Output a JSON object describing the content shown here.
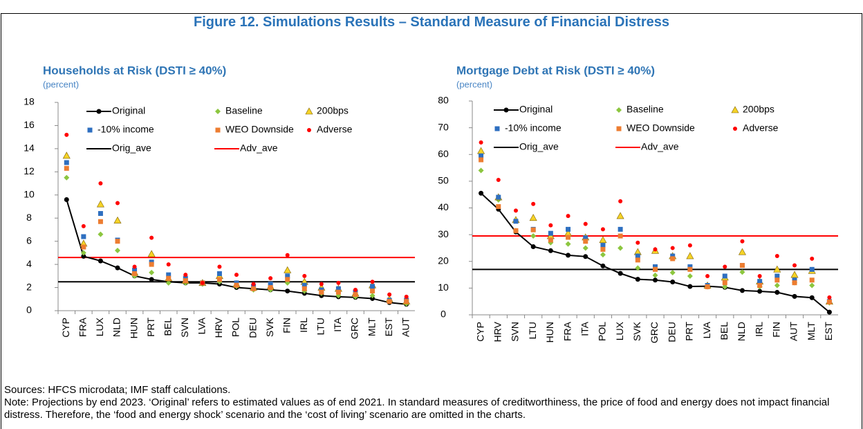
{
  "title": "Figure 12. Simulations Results – Standard Measure of Financial Distress",
  "chart_data": [
    {
      "type": "scatter-line",
      "title": "Households at Risk (DSTI ≥ 40%)",
      "unit": "(percent)",
      "categories": [
        "CYP",
        "FRA",
        "LUX",
        "NLD",
        "HUN",
        "PRT",
        "BEL",
        "SVN",
        "LVA",
        "HRV",
        "POL",
        "DEU",
        "SVK",
        "FIN",
        "IRL",
        "LTU",
        "ITA",
        "GRC",
        "MLT",
        "EST",
        "AUT"
      ],
      "ylim": [
        0,
        18
      ],
      "yticks": [
        0,
        2,
        4,
        6,
        8,
        10,
        12,
        14,
        16,
        18
      ],
      "series": [
        {
          "name": "Original",
          "color": "#000000",
          "marker": "line",
          "values": [
            9.6,
            4.7,
            4.3,
            3.7,
            3.0,
            2.7,
            2.5,
            2.4,
            2.4,
            2.3,
            2.0,
            1.9,
            1.8,
            1.7,
            1.5,
            1.3,
            1.2,
            1.15,
            1.05,
            0.7,
            0.55
          ]
        },
        {
          "name": "Baseline",
          "color": "#8cc63f",
          "marker": "diamond",
          "values": [
            11.5,
            5.0,
            6.6,
            5.2,
            3.0,
            3.3,
            2.4,
            2.4,
            2.3,
            2.5,
            2.1,
            1.8,
            1.8,
            2.4,
            1.7,
            1.5,
            1.3,
            1.2,
            1.3,
            0.8,
            0.6
          ]
        },
        {
          "name": "200bps",
          "color": "#f5d327",
          "marker": "triangle",
          "values": [
            13.4,
            5.8,
            9.2,
            7.8,
            3.3,
            4.9,
            2.8,
            2.6,
            2.4,
            3.0,
            2.3,
            2.0,
            2.1,
            3.5,
            2.5,
            2.0,
            1.9,
            1.5,
            2.2,
            1.0,
            0.8
          ]
        },
        {
          "name": "-10% income",
          "color": "#2e6fc0",
          "marker": "square",
          "values": [
            12.8,
            6.4,
            8.4,
            6.1,
            3.5,
            4.2,
            3.1,
            2.8,
            2.4,
            3.2,
            2.4,
            2.1,
            2.3,
            3.0,
            2.2,
            1.8,
            1.9,
            1.6,
            2.1,
            0.9,
            0.9
          ]
        },
        {
          "name": "WEO Downside",
          "color": "#ed7d31",
          "marker": "square",
          "values": [
            12.3,
            5.5,
            7.7,
            6.0,
            3.2,
            4.0,
            2.8,
            2.6,
            2.4,
            2.7,
            2.2,
            1.9,
            2.0,
            2.7,
            1.9,
            1.6,
            1.6,
            1.4,
            1.7,
            0.8,
            0.8
          ]
        },
        {
          "name": "Adverse",
          "color": "#ff0000",
          "marker": "circle",
          "values": [
            15.2,
            7.3,
            11.0,
            9.3,
            3.8,
            6.3,
            4.0,
            3.1,
            2.4,
            3.8,
            3.1,
            2.3,
            2.8,
            4.8,
            3.0,
            2.3,
            2.4,
            1.8,
            2.5,
            1.4,
            1.2
          ]
        }
      ],
      "reference_lines": [
        {
          "name": "Orig_ave",
          "color": "#000000",
          "value": 2.5
        },
        {
          "name": "Adv_ave",
          "color": "#ff0000",
          "value": 4.6
        }
      ]
    },
    {
      "type": "scatter-line",
      "title": "Mortgage Debt at Risk (DSTI ≥ 40%)",
      "unit": "(percent)",
      "categories": [
        "CYP",
        "HRV",
        "SVN",
        "LTU",
        "HUN",
        "FRA",
        "ITA",
        "POL",
        "LUX",
        "SVK",
        "GRC",
        "DEU",
        "PRT",
        "LVA",
        "BEL",
        "NLD",
        "IRL",
        "FIN",
        "AUT",
        "MLT",
        "EST"
      ],
      "ylim": [
        0,
        80
      ],
      "yticks": [
        0,
        10,
        20,
        30,
        40,
        50,
        60,
        70,
        80
      ],
      "series": [
        {
          "name": "Original",
          "color": "#000000",
          "marker": "line",
          "values": [
            45.5,
            39.5,
            31,
            25.5,
            24,
            22.3,
            21.8,
            18.3,
            15.5,
            13.3,
            13,
            12.3,
            10.6,
            10.7,
            10.3,
            9.1,
            8.8,
            8.4,
            6.9,
            6.4,
            1.0
          ]
        },
        {
          "name": "Baseline",
          "color": "#8cc63f",
          "marker": "diamond",
          "values": [
            54,
            43,
            31.5,
            29.5,
            27,
            26.5,
            25,
            22.5,
            25,
            17.5,
            14.8,
            15.8,
            14.5,
            10.5,
            10.5,
            16,
            10.5,
            11,
            12,
            11,
            4.5
          ]
        },
        {
          "name": "200bps",
          "color": "#f5d327",
          "marker": "triangle",
          "values": [
            61.3,
            44,
            35.5,
            36.3,
            29.5,
            30.5,
            29,
            28,
            37,
            23.5,
            24,
            22,
            22,
            11,
            14,
            23.5,
            12.5,
            17,
            15,
            16.5,
            5
          ]
        },
        {
          "name": "-10% income",
          "color": "#2e6fc0",
          "marker": "square",
          "values": [
            59.5,
            44,
            35,
            32,
            30.5,
            32,
            28.8,
            26,
            32,
            22,
            18,
            22,
            18,
            11,
            14.5,
            18.5,
            12.5,
            14.5,
            13,
            17,
            5
          ]
        },
        {
          "name": "WEO Downside",
          "color": "#ed7d31",
          "marker": "square",
          "values": [
            58,
            40.5,
            31.5,
            31.8,
            28,
            29,
            27.5,
            24.5,
            29.5,
            20.5,
            17,
            21,
            17,
            10.5,
            12,
            18.5,
            11,
            13,
            12,
            13,
            4.8
          ]
        },
        {
          "name": "Adverse",
          "color": "#ff0000",
          "marker": "circle",
          "values": [
            64.5,
            50.5,
            39,
            41.5,
            33.5,
            37,
            34,
            32,
            42.5,
            27,
            24.5,
            25,
            26,
            14.5,
            18,
            27.5,
            14.5,
            22,
            18.5,
            21,
            6.5
          ]
        }
      ],
      "reference_lines": [
        {
          "name": "Orig_ave",
          "color": "#000000",
          "value": 17
        },
        {
          "name": "Adv_ave",
          "color": "#ff0000",
          "value": 29.5
        }
      ]
    }
  ],
  "sources": "Sources: HFCS microdata; IMF staff calculations.",
  "note": "Note: Projections by end 2023. ‘Original’ refers to estimated values as of end 2021. In standard measures of creditworthiness, the price of food and energy does not impact financial distress. Therefore, the ‘food and energy shock’ scenario and the ‘cost of living’ scenario are omitted in the charts."
}
